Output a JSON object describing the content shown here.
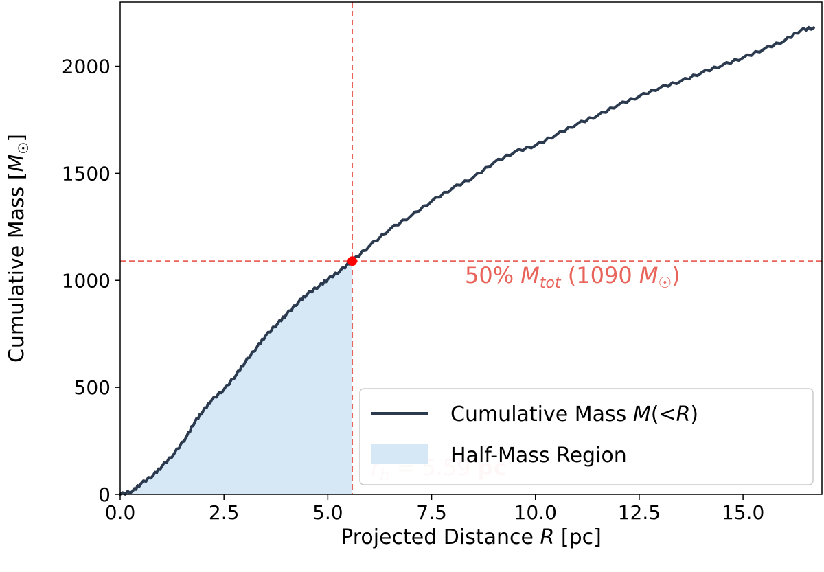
{
  "chart_data": {
    "type": "line",
    "title": "",
    "xlabel": "Projected Distance R [pc]",
    "ylabel": "Cumulative Mass [M☉]",
    "xlim": [
      0,
      16.9
    ],
    "ylim": [
      0,
      2300
    ],
    "x_ticks": [
      0.0,
      2.5,
      5.0,
      7.5,
      10.0,
      12.5,
      15.0
    ],
    "x_tick_labels": [
      "0.0",
      "2.5",
      "5.0",
      "7.5",
      "10.0",
      "12.5",
      "15.0"
    ],
    "y_ticks": [
      0,
      500,
      1000,
      1500,
      2000
    ],
    "y_tick_labels": [
      "0",
      "500",
      "1000",
      "1500",
      "2000"
    ],
    "grid": false,
    "legend_position": "bottom-right",
    "series": [
      {
        "name": "Cumulative Mass M(<R)",
        "color": "#2b3a4e",
        "x": [
          0.0,
          0.3,
          0.5,
          0.8,
          1.0,
          1.3,
          1.6,
          1.8,
          2.0,
          2.2,
          2.5,
          2.8,
          3.0,
          3.3,
          3.5,
          3.8,
          4.0,
          4.3,
          4.5,
          4.8,
          5.0,
          5.3,
          5.59,
          6.0,
          6.5,
          7.0,
          7.5,
          8.0,
          8.5,
          9.0,
          9.5,
          10.0,
          10.5,
          11.0,
          11.5,
          12.0,
          12.5,
          13.0,
          13.5,
          14.0,
          14.5,
          15.0,
          15.5,
          16.0,
          16.4,
          16.7
        ],
        "y": [
          0,
          15,
          50,
          90,
          130,
          190,
          270,
          340,
          390,
          440,
          490,
          560,
          615,
          690,
          740,
          800,
          840,
          900,
          935,
          975,
          1005,
          1045,
          1090,
          1160,
          1240,
          1300,
          1370,
          1430,
          1480,
          1550,
          1600,
          1630,
          1680,
          1730,
          1770,
          1820,
          1860,
          1900,
          1930,
          1970,
          2005,
          2040,
          2080,
          2120,
          2170,
          2180
        ]
      }
    ],
    "fill_region": {
      "label": "Half-Mass Region",
      "x_max": 5.59,
      "color": "#d6e8f6"
    },
    "half_mass_point": {
      "x": 5.59,
      "y": 1090,
      "color": "#ff0000"
    },
    "reference_line_color": "#e8635a",
    "annotations": {
      "hline_label": "50% Mtot (1090 M☉)",
      "vline_label": "rh = 5.59 pc"
    }
  }
}
